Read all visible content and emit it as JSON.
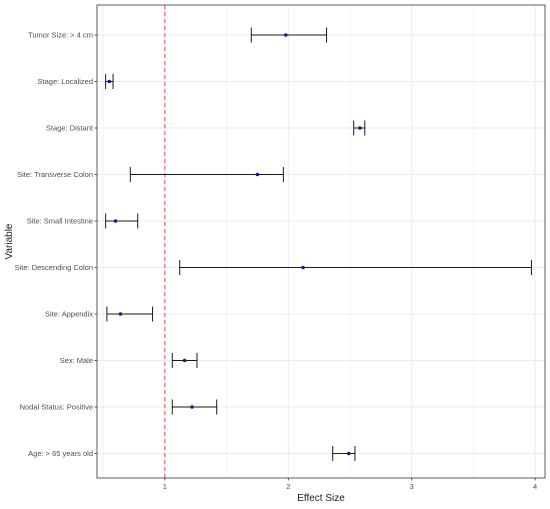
{
  "chart_data": {
    "type": "forest",
    "title": "",
    "xlabel": "Effect Size",
    "ylabel": "Variable",
    "xlim": [
      0.45,
      4.08
    ],
    "x_ticks": [
      1,
      2,
      3,
      4
    ],
    "reference_line": {
      "x": 1,
      "style": "dashed",
      "color": "#e8483b"
    },
    "grid": true,
    "legend": "none",
    "colors": {
      "point": "#1a1a8c",
      "errorbar": "#1a1a1a",
      "panel_border": "#333333",
      "grid": "#ebebeb"
    },
    "rows": [
      {
        "label": "Tumor Size: > 4 cm",
        "estimate": 1.98,
        "lower": 1.7,
        "upper": 2.31
      },
      {
        "label": "Stage: Localized",
        "estimate": 0.55,
        "lower": 0.52,
        "upper": 0.58
      },
      {
        "label": "Stage: Distant",
        "estimate": 2.58,
        "lower": 2.53,
        "upper": 2.62
      },
      {
        "label": "Site: Transverse Colon",
        "estimate": 1.75,
        "lower": 0.72,
        "upper": 1.96
      },
      {
        "label": "Site: Small Intestine",
        "estimate": 0.6,
        "lower": 0.52,
        "upper": 0.78
      },
      {
        "label": "Site: Descending Colon",
        "estimate": 2.12,
        "lower": 1.12,
        "upper": 3.97
      },
      {
        "label": "Site: Appendix",
        "estimate": 0.64,
        "lower": 0.53,
        "upper": 0.9
      },
      {
        "label": "Sex: Male",
        "estimate": 1.16,
        "lower": 1.06,
        "upper": 1.26
      },
      {
        "label": "Nodal Status: Positive",
        "estimate": 1.22,
        "lower": 1.06,
        "upper": 1.42
      },
      {
        "label": "Age: > 65 years old",
        "estimate": 2.49,
        "lower": 2.36,
        "upper": 2.54
      }
    ]
  }
}
